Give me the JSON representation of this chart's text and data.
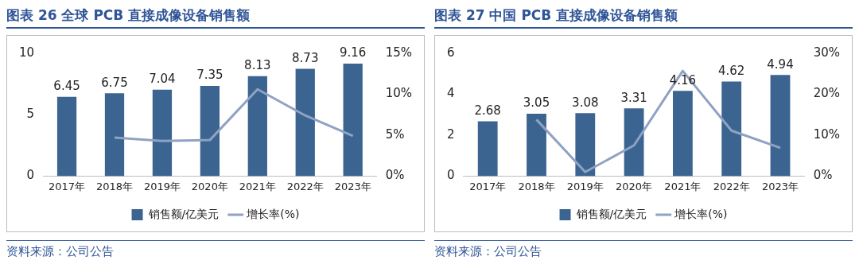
{
  "chart_data": [
    {
      "type": "bar",
      "title": "图表 26 全球 PCB 直接成像设备销售额",
      "categories": [
        "2017年",
        "2018年",
        "2019年",
        "2020年",
        "2021年",
        "2022年",
        "2023年"
      ],
      "series": [
        {
          "name": "销售额/亿美元",
          "color": "#3b6491",
          "values": [
            6.45,
            6.75,
            7.04,
            7.35,
            8.13,
            8.73,
            9.16
          ],
          "value_labels": [
            "6.45",
            "6.75",
            "7.04",
            "7.35",
            "8.13",
            "8.73",
            "9.16"
          ]
        },
        {
          "name": "增长率(%)",
          "type": "line",
          "axis": "y2",
          "color": "#8fa2c4",
          "values": [
            null,
            4.7,
            4.3,
            4.4,
            10.6,
            7.4,
            4.9
          ]
        }
      ],
      "ylim": [
        0,
        10
      ],
      "yticks": [
        0,
        5,
        10
      ],
      "y2lim": [
        0,
        15
      ],
      "y2ticks": [
        {
          "value": 0,
          "label": "0%"
        },
        {
          "value": 5,
          "label": "5%"
        },
        {
          "value": 10,
          "label": "10%"
        },
        {
          "value": 15,
          "label": "15%"
        }
      ],
      "legend": "bottom",
      "marker": "none",
      "annotations": [
        "资料来源：公司公告"
      ]
    },
    {
      "type": "bar",
      "title": "图表 27  中国 PCB 直接成像设备销售额",
      "categories": [
        "2017年",
        "2018年",
        "2019年",
        "2020年",
        "2021年",
        "2022年",
        "2023年"
      ],
      "series": [
        {
          "name": "销售额/亿美元",
          "color": "#3b6491",
          "values": [
            2.68,
            3.05,
            3.08,
            3.31,
            4.16,
            4.62,
            4.94
          ],
          "value_labels": [
            "2.68",
            "3.05",
            "3.08",
            "3.31",
            "4.16",
            "4.62",
            "4.94"
          ]
        },
        {
          "name": "增长率(%)",
          "type": "line",
          "axis": "y2",
          "color": "#8fa2c4",
          "values": [
            null,
            13.8,
            1.0,
            7.5,
            25.7,
            11.1,
            6.9
          ]
        }
      ],
      "ylim": [
        0,
        6
      ],
      "yticks": [
        0,
        2,
        4,
        6
      ],
      "y2lim": [
        0,
        30
      ],
      "y2ticks": [
        {
          "value": 0,
          "label": "0%"
        },
        {
          "value": 10,
          "label": "10%"
        },
        {
          "value": 20,
          "label": "20%"
        },
        {
          "value": 30,
          "label": "30%"
        }
      ],
      "legend": "bottom",
      "marker": "none",
      "annotations": [
        "资料来源：公司公告"
      ]
    }
  ]
}
